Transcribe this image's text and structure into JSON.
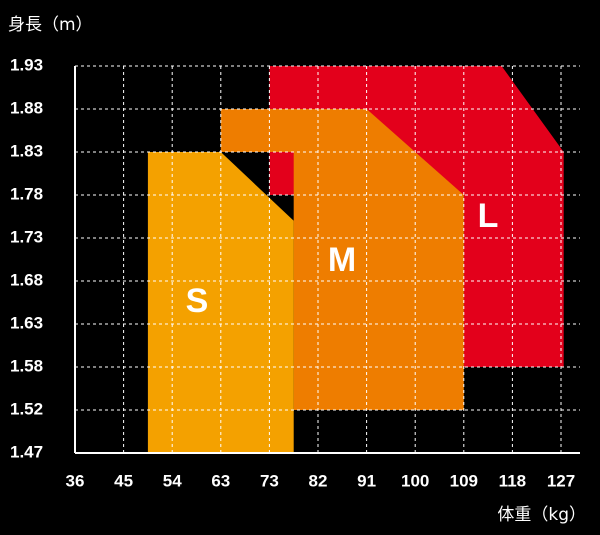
{
  "chart_data": {
    "type": "area",
    "ylabel": "身長（m）",
    "xlabel": "体重（kg）",
    "x_ticks": [
      "36",
      "45",
      "54",
      "63",
      "73",
      "82",
      "91",
      "100",
      "109",
      "118",
      "127"
    ],
    "y_ticks": [
      "1.47",
      "1.52",
      "1.58",
      "1.63",
      "1.68",
      "1.73",
      "1.78",
      "1.83",
      "1.88",
      "1.93"
    ],
    "grid": true,
    "regions": [
      {
        "name": "L",
        "color": "#e3001b",
        "polygon": [
          [
            73,
            1.93
          ],
          [
            116,
            1.93
          ],
          [
            127.5,
            1.83
          ],
          [
            127.5,
            1.58
          ],
          [
            109,
            1.58
          ],
          [
            109,
            1.78
          ],
          [
            73,
            1.78
          ]
        ]
      },
      {
        "name": "M",
        "color": "#ee7d00",
        "polygon": [
          [
            63,
            1.88
          ],
          [
            91,
            1.88
          ],
          [
            109,
            1.78
          ],
          [
            109,
            1.52
          ],
          [
            77.5,
            1.52
          ],
          [
            77.5,
            1.83
          ],
          [
            63,
            1.83
          ]
        ]
      },
      {
        "name": "S",
        "color": "#f4a100",
        "polygon": [
          [
            49.5,
            1.83
          ],
          [
            63,
            1.83
          ],
          [
            77.5,
            1.75
          ],
          [
            77.5,
            1.47
          ],
          [
            49.5,
            1.47
          ]
        ]
      }
    ]
  }
}
